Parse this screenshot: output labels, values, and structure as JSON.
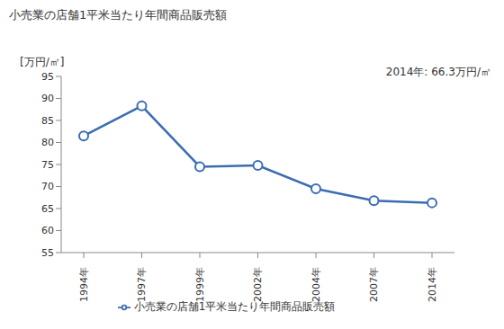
{
  "chart_data": {
    "type": "line",
    "title": "小売業の店舗1平米当たり年間商品販売額",
    "y_label": "[万円/㎡]",
    "annotation": "2014年: 66.3万円/㎡",
    "categories": [
      "1994年",
      "1997年",
      "1999年",
      "2002年",
      "2004年",
      "2007年",
      "2014年"
    ],
    "series": [
      {
        "name": "小売業の店舗1平米当たり年間商品販売額",
        "color": "#3b6db3",
        "marker": "circle",
        "values": [
          81.5,
          88.3,
          74.5,
          74.8,
          69.5,
          66.8,
          66.3
        ]
      }
    ],
    "ylim": [
      55,
      95
    ],
    "yticks": [
      55,
      60,
      65,
      70,
      75,
      80,
      85,
      90,
      95
    ],
    "grid": false,
    "legend": "bottom"
  }
}
